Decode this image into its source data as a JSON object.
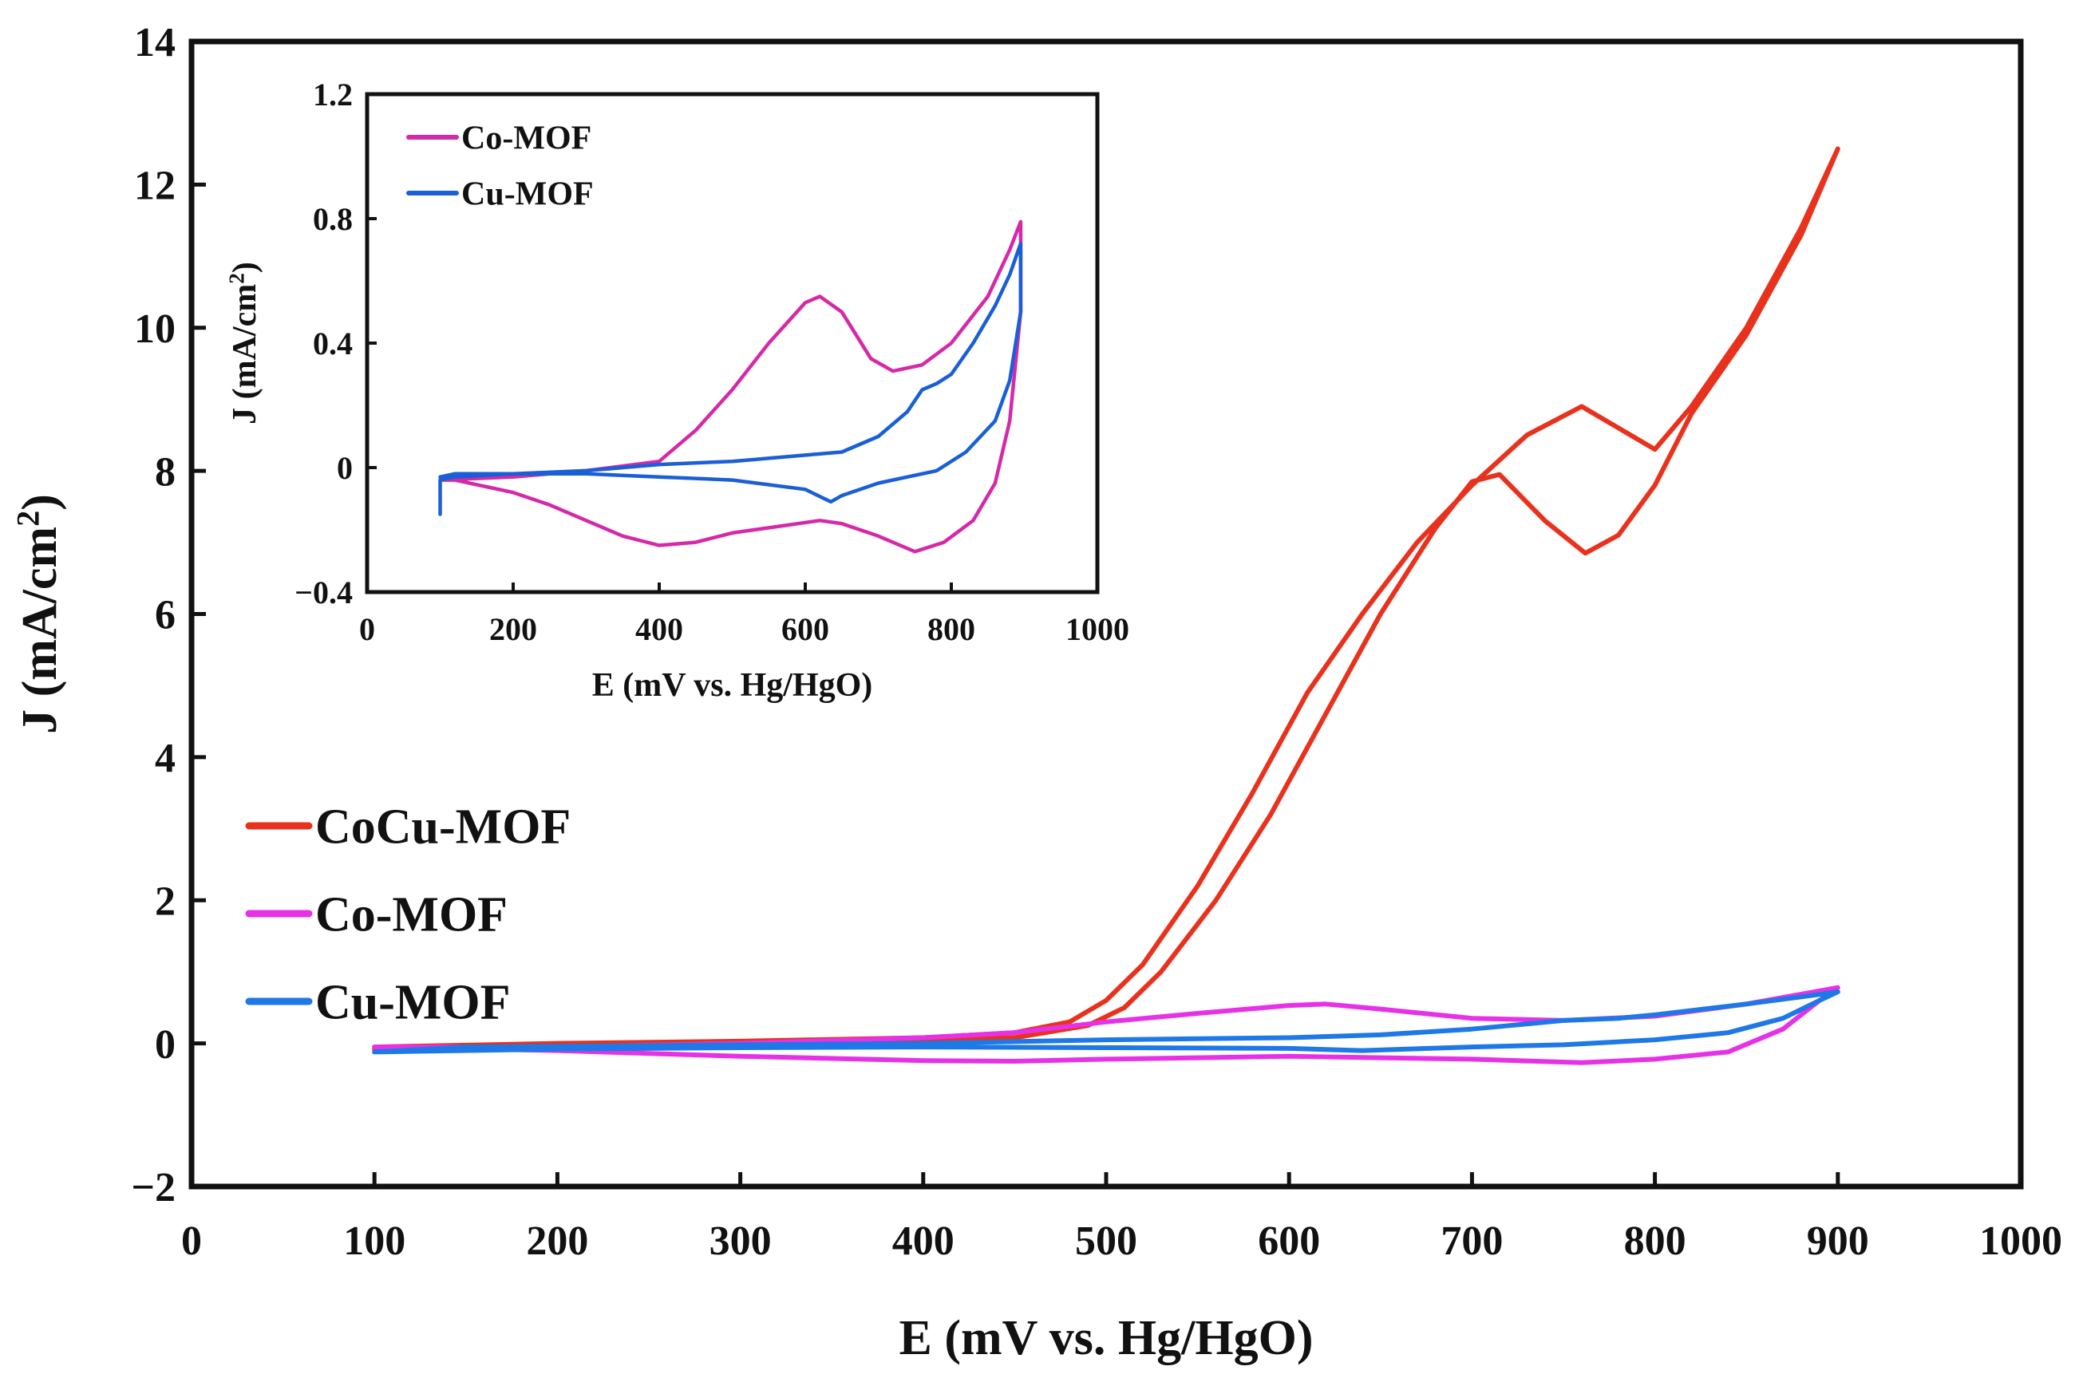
{
  "chart_data": [
    {
      "type": "line",
      "title": "",
      "xlabel": "E (mV vs. Hg/HgO)",
      "ylabel_main": "J (mA/cm",
      "ylabel_sup": "2",
      "ylabel_close": ")",
      "xlim": [
        0,
        1000
      ],
      "ylim": [
        -2,
        14
      ],
      "xticks": [
        0,
        100,
        200,
        300,
        400,
        500,
        600,
        700,
        800,
        900,
        1000
      ],
      "xtick_labels": [
        "0",
        "100",
        "200",
        "300",
        "400",
        "500",
        "600",
        "700",
        "800",
        "900",
        "1000"
      ],
      "yticks": [
        -2,
        0,
        2,
        4,
        6,
        8,
        10,
        12,
        14
      ],
      "ytick_labels": [
        "−2",
        "0",
        "2",
        "4",
        "6",
        "8",
        "10",
        "12",
        "14"
      ],
      "legend_position": "middle-left",
      "series": [
        {
          "name": "CoCu-MOF",
          "color": "#e8321e",
          "loop": [
            [
              100,
              -0.05
            ],
            [
              200,
              0.0
            ],
            [
              300,
              0.03
            ],
            [
              400,
              0.08
            ],
            [
              450,
              0.15
            ],
            [
              480,
              0.3
            ],
            [
              500,
              0.6
            ],
            [
              520,
              1.1
            ],
            [
              550,
              2.2
            ],
            [
              580,
              3.5
            ],
            [
              610,
              4.9
            ],
            [
              640,
              6.0
            ],
            [
              670,
              7.0
            ],
            [
              700,
              7.8
            ],
            [
              730,
              8.5
            ],
            [
              760,
              8.9
            ],
            [
              780,
              8.6
            ],
            [
              800,
              8.3
            ],
            [
              820,
              8.9
            ],
            [
              850,
              10.0
            ],
            [
              880,
              11.4
            ],
            [
              900,
              12.5
            ],
            [
              880,
              11.3
            ],
            [
              850,
              9.9
            ],
            [
              820,
              8.8
            ],
            [
              800,
              7.8
            ],
            [
              780,
              7.1
            ],
            [
              762,
              6.85
            ],
            [
              740,
              7.3
            ],
            [
              715,
              7.95
            ],
            [
              700,
              7.85
            ],
            [
              680,
              7.2
            ],
            [
              650,
              6.0
            ],
            [
              620,
              4.6
            ],
            [
              590,
              3.2
            ],
            [
              560,
              2.0
            ],
            [
              530,
              1.0
            ],
            [
              510,
              0.5
            ],
            [
              490,
              0.25
            ],
            [
              450,
              0.08
            ],
            [
              400,
              0.03
            ],
            [
              300,
              -0.02
            ],
            [
              200,
              -0.05
            ],
            [
              100,
              -0.08
            ]
          ]
        },
        {
          "name": "Co-MOF",
          "color": "#e632e6",
          "loop": [
            [
              100,
              -0.05
            ],
            [
              200,
              -0.05
            ],
            [
              300,
              0.0
            ],
            [
              400,
              0.08
            ],
            [
              450,
              0.15
            ],
            [
              500,
              0.3
            ],
            [
              550,
              0.42
            ],
            [
              600,
              0.53
            ],
            [
              620,
              0.55
            ],
            [
              650,
              0.48
            ],
            [
              700,
              0.35
            ],
            [
              750,
              0.32
            ],
            [
              800,
              0.38
            ],
            [
              850,
              0.55
            ],
            [
              900,
              0.78
            ],
            [
              890,
              0.6
            ],
            [
              870,
              0.2
            ],
            [
              840,
              -0.12
            ],
            [
              800,
              -0.22
            ],
            [
              760,
              -0.27
            ],
            [
              700,
              -0.22
            ],
            [
              650,
              -0.2
            ],
            [
              600,
              -0.18
            ],
            [
              550,
              -0.2
            ],
            [
              500,
              -0.22
            ],
            [
              450,
              -0.25
            ],
            [
              400,
              -0.24
            ],
            [
              300,
              -0.18
            ],
            [
              200,
              -0.1
            ],
            [
              100,
              -0.05
            ]
          ]
        },
        {
          "name": "Cu-MOF",
          "color": "#1e78e6",
          "loop": [
            [
              100,
              -0.12
            ],
            [
              150,
              -0.05
            ],
            [
              300,
              -0.02
            ],
            [
              400,
              0.0
            ],
            [
              500,
              0.05
            ],
            [
              600,
              0.08
            ],
            [
              650,
              0.12
            ],
            [
              700,
              0.2
            ],
            [
              750,
              0.32
            ],
            [
              780,
              0.35
            ],
            [
              800,
              0.4
            ],
            [
              850,
              0.55
            ],
            [
              880,
              0.65
            ],
            [
              900,
              0.72
            ],
            [
              890,
              0.6
            ],
            [
              870,
              0.35
            ],
            [
              840,
              0.15
            ],
            [
              800,
              0.05
            ],
            [
              750,
              -0.02
            ],
            [
              700,
              -0.05
            ],
            [
              640,
              -0.1
            ],
            [
              600,
              -0.07
            ],
            [
              500,
              -0.06
            ],
            [
              400,
              -0.05
            ],
            [
              300,
              -0.06
            ],
            [
              200,
              -0.08
            ],
            [
              100,
              -0.12
            ]
          ]
        }
      ]
    },
    {
      "type": "line",
      "title": "",
      "xlabel": "E (mV vs. Hg/HgO)",
      "ylabel_main": "J (mA/cm",
      "ylabel_sup": "2",
      "ylabel_close": ")",
      "xlim": [
        0,
        1000
      ],
      "ylim": [
        -0.4,
        1.2
      ],
      "xticks": [
        0,
        200,
        400,
        600,
        800,
        1000
      ],
      "xtick_labels": [
        "0",
        "200",
        "400",
        "600",
        "800",
        "1000"
      ],
      "yticks": [
        -0.4,
        0,
        0.4,
        0.8,
        1.2
      ],
      "ytick_labels": [
        "−0.4",
        "0",
        "0.4",
        "0.8",
        "1.2"
      ],
      "legend_position": "top-left",
      "series": [
        {
          "name": "Co-MOF",
          "color": "#d42aa8",
          "loop": [
            [
              100,
              -0.04
            ],
            [
              200,
              -0.03
            ],
            [
              300,
              -0.01
            ],
            [
              400,
              0.02
            ],
            [
              450,
              0.12
            ],
            [
              500,
              0.25
            ],
            [
              550,
              0.4
            ],
            [
              600,
              0.53
            ],
            [
              620,
              0.55
            ],
            [
              650,
              0.5
            ],
            [
              690,
              0.35
            ],
            [
              720,
              0.31
            ],
            [
              760,
              0.33
            ],
            [
              800,
              0.4
            ],
            [
              850,
              0.55
            ],
            [
              880,
              0.7
            ],
            [
              895,
              0.79
            ],
            [
              895,
              0.5
            ],
            [
              880,
              0.15
            ],
            [
              860,
              -0.05
            ],
            [
              830,
              -0.17
            ],
            [
              790,
              -0.24
            ],
            [
              750,
              -0.27
            ],
            [
              700,
              -0.22
            ],
            [
              650,
              -0.18
            ],
            [
              620,
              -0.17
            ],
            [
              560,
              -0.19
            ],
            [
              500,
              -0.21
            ],
            [
              450,
              -0.24
            ],
            [
              400,
              -0.25
            ],
            [
              350,
              -0.22
            ],
            [
              300,
              -0.17
            ],
            [
              250,
              -0.12
            ],
            [
              200,
              -0.08
            ],
            [
              120,
              -0.04
            ],
            [
              100,
              -0.04
            ]
          ]
        },
        {
          "name": "Cu-MOF",
          "color": "#1a5fd6",
          "loop": [
            [
              100,
              -0.15
            ],
            [
              100,
              -0.04
            ],
            [
              120,
              -0.03
            ],
            [
              200,
              -0.02
            ],
            [
              300,
              -0.01
            ],
            [
              400,
              0.01
            ],
            [
              500,
              0.02
            ],
            [
              600,
              0.04
            ],
            [
              650,
              0.05
            ],
            [
              700,
              0.1
            ],
            [
              740,
              0.18
            ],
            [
              760,
              0.25
            ],
            [
              780,
              0.27
            ],
            [
              800,
              0.3
            ],
            [
              830,
              0.4
            ],
            [
              860,
              0.52
            ],
            [
              880,
              0.62
            ],
            [
              895,
              0.72
            ],
            [
              895,
              0.5
            ],
            [
              880,
              0.28
            ],
            [
              860,
              0.15
            ],
            [
              820,
              0.05
            ],
            [
              780,
              -0.01
            ],
            [
              740,
              -0.03
            ],
            [
              700,
              -0.05
            ],
            [
              650,
              -0.09
            ],
            [
              635,
              -0.11
            ],
            [
              600,
              -0.07
            ],
            [
              500,
              -0.04
            ],
            [
              400,
              -0.03
            ],
            [
              300,
              -0.02
            ],
            [
              200,
              -0.02
            ],
            [
              120,
              -0.02
            ],
            [
              100,
              -0.03
            ]
          ]
        }
      ]
    }
  ]
}
